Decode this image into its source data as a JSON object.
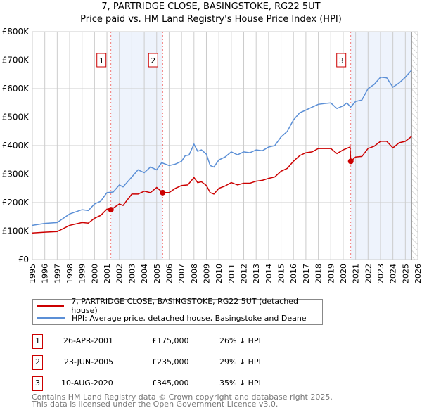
{
  "chart_data": {
    "type": "line",
    "title": "7, PARTRIDGE CLOSE, BASINGSTOKE, RG22 5UT",
    "subtitle": "Price paid vs. HM Land Registry's House Price Index (HPI)",
    "xlim": [
      1995,
      2026
    ],
    "ylim": [
      0,
      800000
    ],
    "x_ticks": [
      "1995",
      "1996",
      "1997",
      "1998",
      "1999",
      "2000",
      "2001",
      "2002",
      "2003",
      "2004",
      "2005",
      "2006",
      "2007",
      "2008",
      "2009",
      "2010",
      "2011",
      "2012",
      "2013",
      "2014",
      "2015",
      "2016",
      "2017",
      "2018",
      "2019",
      "2020",
      "2021",
      "2022",
      "2023",
      "2024",
      "2025",
      "2026"
    ],
    "y_ticks": [
      {
        "v": 0,
        "label": "£0"
      },
      {
        "v": 100000,
        "label": "£100K"
      },
      {
        "v": 200000,
        "label": "£200K"
      },
      {
        "v": 300000,
        "label": "£300K"
      },
      {
        "v": 400000,
        "label": "£400K"
      },
      {
        "v": 500000,
        "label": "£500K"
      },
      {
        "v": 600000,
        "label": "£600K"
      },
      {
        "v": 700000,
        "label": "£700K"
      },
      {
        "v": 800000,
        "label": "£800K"
      }
    ],
    "grid": true,
    "shaded_ranges": [
      [
        2001.32,
        2005.48
      ],
      [
        2020.61,
        2025.5
      ]
    ],
    "hatched_from": 2025.5,
    "series": [
      {
        "name": "7, PARTRIDGE CLOSE, BASINGSTOKE, RG22 5UT (detached house)",
        "color": "#cc0000",
        "x": [
          1995,
          1996,
          1997,
          1998,
          1999,
          1999.5,
          2000,
          2000.5,
          2001,
          2001.32,
          2002,
          2002.3,
          2003,
          2003.5,
          2004,
          2004.5,
          2005,
          2005.48,
          2006,
          2006.5,
          2007,
          2007.5,
          2008,
          2008.3,
          2008.6,
          2009,
          2009.3,
          2009.6,
          2010,
          2010.5,
          2011,
          2011.5,
          2012,
          2012.5,
          2013,
          2013.5,
          2014,
          2014.5,
          2015,
          2015.5,
          2016,
          2016.5,
          2017,
          2017.5,
          2018,
          2018.5,
          2019,
          2019.5,
          2020,
          2020.55,
          2020.61,
          2021,
          2021.5,
          2022,
          2022.5,
          2023,
          2023.5,
          2024,
          2024.5,
          2025,
          2025.5
        ],
        "y": [
          93,
          96,
          98,
          120,
          130,
          128,
          145,
          155,
          177,
          175,
          195,
          190,
          230,
          230,
          240,
          235,
          253,
          235,
          235,
          250,
          260,
          262,
          288,
          270,
          273,
          260,
          235,
          230,
          250,
          258,
          270,
          262,
          268,
          268,
          275,
          278,
          285,
          290,
          310,
          320,
          345,
          365,
          375,
          378,
          390,
          390,
          390,
          372,
          385,
          395,
          345,
          360,
          362,
          390,
          398,
          415,
          415,
          392,
          410,
          415,
          432
        ]
      },
      {
        "name": "HPI: Average price, detached house, Basingstoke and Deane",
        "color": "#5b8fd6",
        "x": [
          1995,
          1996,
          1997,
          1997.5,
          1998,
          1999,
          1999.5,
          2000,
          2000.5,
          2001,
          2001.5,
          2002,
          2002.3,
          2003,
          2003.5,
          2004,
          2004.5,
          2005,
          2005.4,
          2006,
          2006.5,
          2007,
          2007.3,
          2007.6,
          2008,
          2008.3,
          2008.6,
          2009,
          2009.3,
          2009.6,
          2010,
          2010.5,
          2011,
          2011.5,
          2012,
          2012.5,
          2013,
          2013.5,
          2014,
          2014.5,
          2015,
          2015.5,
          2016,
          2016.5,
          2017,
          2017.5,
          2018,
          2018.5,
          2019,
          2019.5,
          2020,
          2020.3,
          2020.6,
          2021,
          2021.5,
          2022,
          2022.5,
          2023,
          2023.5,
          2024,
          2024.5,
          2025,
          2025.5
        ],
        "y": [
          120,
          127,
          130,
          145,
          160,
          175,
          172,
          195,
          205,
          235,
          237,
          262,
          255,
          290,
          315,
          305,
          325,
          315,
          340,
          330,
          335,
          345,
          365,
          367,
          405,
          380,
          385,
          370,
          330,
          325,
          350,
          360,
          378,
          368,
          378,
          375,
          385,
          382,
          395,
          400,
          430,
          450,
          490,
          515,
          525,
          535,
          545,
          548,
          550,
          530,
          540,
          550,
          535,
          555,
          560,
          600,
          615,
          640,
          638,
          605,
          620,
          640,
          665
        ]
      }
    ],
    "y_unit_note": "values in £K",
    "sales": [
      {
        "id": "1",
        "x": 2001.32,
        "y": 175,
        "date": "26-APR-2001",
        "price": "£175,000",
        "hpi": "26% ↓ HPI"
      },
      {
        "id": "2",
        "x": 2005.48,
        "y": 235,
        "date": "23-JUN-2005",
        "price": "£235,000",
        "hpi": "29% ↓ HPI"
      },
      {
        "id": "3",
        "x": 2020.61,
        "y": 345,
        "date": "10-AUG-2020",
        "price": "£345,000",
        "hpi": "35% ↓ HPI"
      }
    ]
  },
  "footer": {
    "line1": "Contains HM Land Registry data © Crown copyright and database right 2025.",
    "line2": "This data is licensed under the Open Government Licence v3.0."
  }
}
